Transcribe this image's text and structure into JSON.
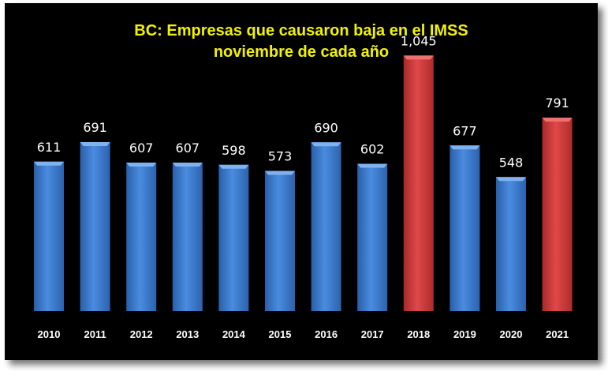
{
  "chart_data": {
    "type": "bar",
    "title": "BC: Empresas que causaron baja en el IMSS",
    "subtitle": "noviembre de cada año",
    "categories": [
      "2010",
      "2011",
      "2012",
      "2013",
      "2014",
      "2015",
      "2016",
      "2017",
      "2018",
      "2019",
      "2020",
      "2021"
    ],
    "values": [
      611,
      691,
      607,
      607,
      598,
      573,
      690,
      602,
      1045,
      677,
      548,
      791
    ],
    "value_labels": [
      "611",
      "691",
      "607",
      "607",
      "598",
      "573",
      "690",
      "602",
      "1,045",
      "677",
      "548",
      "791"
    ],
    "highlighted": [
      "2018",
      "2021"
    ],
    "ylim": [
      0,
      1130
    ],
    "grid": false,
    "legend": "none",
    "colors": {
      "bar": "#3f7fcf",
      "bar_highlight": "#cf3c3c",
      "background": "#000000",
      "title": "#f2f200",
      "text": "#ffffff"
    }
  }
}
